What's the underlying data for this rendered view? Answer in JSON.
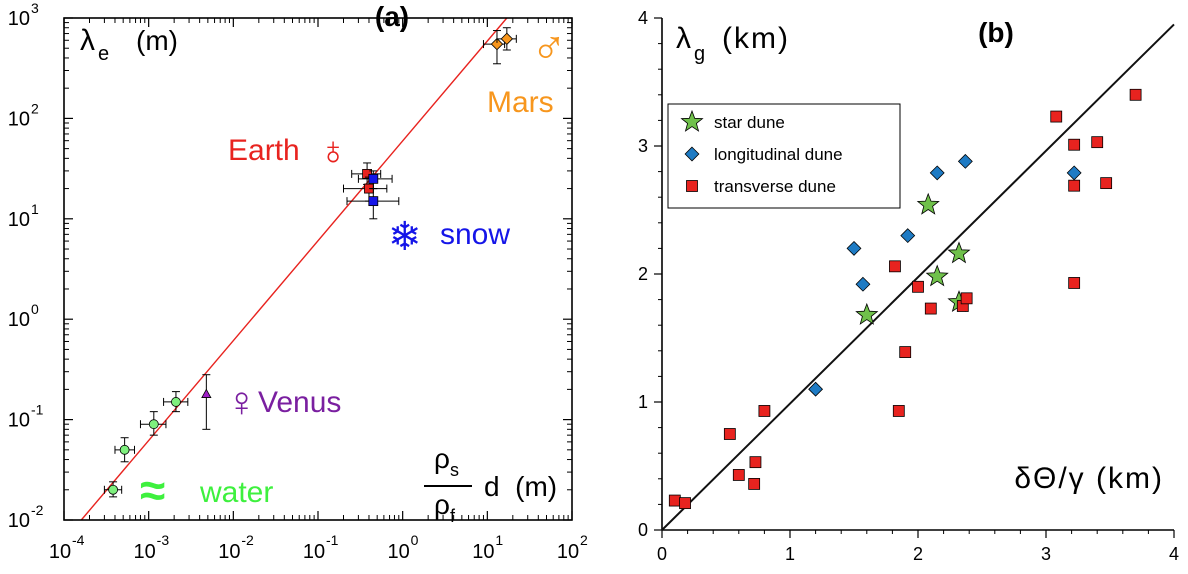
{
  "chart_data": [
    {
      "type": "scatter",
      "title": "(a)",
      "xlabel_num": "ρ",
      "xlabel_num_sub": "s",
      "xlabel_den": "ρ",
      "xlabel_den_sub": "f",
      "xlabel_tail": "d  (m)",
      "ylabel": "λ",
      "ylabel_sub": "e",
      "ylabel_unit": "(m)",
      "xscale": "log",
      "yscale": "log",
      "xlim": [
        0.0001,
        100
      ],
      "ylim": [
        0.01,
        1000
      ],
      "x_ticks": [
        {
          "base": "10",
          "exp": "-4",
          "value": 0.0001
        },
        {
          "base": "10",
          "exp": "-3",
          "value": 0.001
        },
        {
          "base": "10",
          "exp": "-2",
          "value": 0.01
        },
        {
          "base": "10",
          "exp": "-1",
          "value": 0.1
        },
        {
          "base": "10",
          "exp": "0",
          "value": 1
        },
        {
          "base": "10",
          "exp": "1",
          "value": 10
        },
        {
          "base": "10",
          "exp": "2",
          "value": 100
        }
      ],
      "y_ticks": [
        {
          "base": "10",
          "exp": "-2",
          "value": 0.01
        },
        {
          "base": "10",
          "exp": "-1",
          "value": 0.1
        },
        {
          "base": "10",
          "exp": "0",
          "value": 1
        },
        {
          "base": "10",
          "exp": "1",
          "value": 10
        },
        {
          "base": "10",
          "exp": "2",
          "value": 100
        },
        {
          "base": "10",
          "exp": "3",
          "value": 1000
        }
      ],
      "fit_line": {
        "color": "#e8231f",
        "points": [
          [
            0.00016,
            0.01
          ],
          [
            17,
            1000
          ]
        ]
      },
      "labels": {
        "mars": {
          "text": "Mars",
          "color": "#f7961d",
          "symbol": "♂"
        },
        "earth": {
          "text": "Earth",
          "color": "#e8231f",
          "symbol": "♁"
        },
        "snow": {
          "text": "snow",
          "color": "#1515e8",
          "symbol": "❄"
        },
        "venus": {
          "text": "Venus",
          "color": "#7a1fa0",
          "symbol": "♀"
        },
        "water": {
          "text": "water",
          "color": "#3ef03e",
          "symbol": "≈"
        }
      },
      "series": [
        {
          "group": "water",
          "marker": "circle",
          "color": "#7ef07e",
          "points": [
            {
              "x": 0.00038,
              "y": 0.02,
              "xerr": [
                0.0003,
                0.00048
              ],
              "yerr": [
                0.017,
                0.024
              ]
            },
            {
              "x": 0.00052,
              "y": 0.05,
              "xerr": [
                0.0004,
                0.00068
              ],
              "yerr": [
                0.038,
                0.066
              ]
            },
            {
              "x": 0.00115,
              "y": 0.09,
              "xerr": [
                0.0008,
                0.0016
              ],
              "yerr": [
                0.07,
                0.12
              ]
            },
            {
              "x": 0.0021,
              "y": 0.15,
              "xerr": [
                0.0015,
                0.0029
              ],
              "yerr": [
                0.12,
                0.19
              ]
            }
          ]
        },
        {
          "group": "venus",
          "marker": "triangle",
          "color": "#a020c8",
          "points": [
            {
              "x": 0.0048,
              "y": 0.18,
              "xerr": null,
              "yerr": [
                0.08,
                0.28
              ]
            }
          ]
        },
        {
          "group": "earth",
          "marker": "square",
          "color": "#e8231f",
          "points": [
            {
              "x": 0.38,
              "y": 28,
              "xerr": [
                0.25,
                0.55
              ],
              "yerr": [
                22,
                36
              ]
            },
            {
              "x": 0.4,
              "y": 20,
              "xerr": [
                0.2,
                0.65
              ],
              "yerr": [
                15,
                26
              ]
            }
          ]
        },
        {
          "group": "snow",
          "marker": "square",
          "color": "#1515e8",
          "points": [
            {
              "x": 0.45,
              "y": 25,
              "xerr": [
                0.3,
                0.75
              ],
              "yerr": [
                20,
                30
              ]
            },
            {
              "x": 0.45,
              "y": 15,
              "xerr": [
                0.22,
                0.9
              ],
              "yerr": [
                10,
                20
              ]
            }
          ]
        },
        {
          "group": "mars",
          "marker": "diamond",
          "color": "#f7961d",
          "points": [
            {
              "x": 13,
              "y": 550,
              "xerr": [
                9,
                16
              ],
              "yerr": [
                350,
                750
              ]
            },
            {
              "x": 17,
              "y": 620,
              "xerr": [
                13,
                22
              ],
              "yerr": [
                480,
                800
              ]
            }
          ]
        }
      ]
    },
    {
      "type": "scatter",
      "title": "(b)",
      "ylabel": "λ",
      "ylabel_sub": "g",
      "ylabel_unit": "(km)",
      "xlabel": "δΘ/γ (km)",
      "xlim": [
        0,
        4
      ],
      "ylim": [
        0,
        4
      ],
      "x_ticks": [
        "0",
        "1",
        "2",
        "3",
        "4"
      ],
      "y_ticks": [
        "0",
        "1",
        "2",
        "3",
        "4"
      ],
      "fit_line": {
        "color": "#111111",
        "points": [
          [
            0,
            0
          ],
          [
            4,
            3.95
          ]
        ]
      },
      "legend": {
        "position": "top-left",
        "items": [
          {
            "label": "star dune",
            "marker": "star",
            "color": "#6fc04a"
          },
          {
            "label": "longitudinal dune",
            "marker": "diamond",
            "color": "#1e7bc4"
          },
          {
            "label": "transverse dune",
            "marker": "square",
            "color": "#e8231f"
          }
        ]
      },
      "series": [
        {
          "name": "star dune",
          "marker": "star",
          "color": "#6fc04a",
          "points": [
            [
              1.6,
              1.68
            ],
            [
              2.08,
              2.54
            ],
            [
              2.15,
              1.98
            ],
            [
              2.32,
              2.16
            ],
            [
              2.32,
              1.78
            ]
          ]
        },
        {
          "name": "longitudinal dune",
          "marker": "diamond",
          "color": "#1e7bc4",
          "points": [
            [
              1.2,
              1.1
            ],
            [
              1.5,
              2.2
            ],
            [
              1.57,
              1.92
            ],
            [
              1.92,
              2.3
            ],
            [
              2.15,
              2.79
            ],
            [
              2.37,
              2.88
            ],
            [
              3.22,
              2.79
            ]
          ]
        },
        {
          "name": "transverse dune",
          "marker": "square",
          "color": "#e8231f",
          "points": [
            [
              0.1,
              0.23
            ],
            [
              0.18,
              0.21
            ],
            [
              0.53,
              0.75
            ],
            [
              0.6,
              0.43
            ],
            [
              0.72,
              0.36
            ],
            [
              0.73,
              0.53
            ],
            [
              0.8,
              0.93
            ],
            [
              1.82,
              2.06
            ],
            [
              1.85,
              0.93
            ],
            [
              1.9,
              1.39
            ],
            [
              2.0,
              1.9
            ],
            [
              2.1,
              1.73
            ],
            [
              2.35,
              1.75
            ],
            [
              2.38,
              1.81
            ],
            [
              3.08,
              3.23
            ],
            [
              3.22,
              3.01
            ],
            [
              3.22,
              2.69
            ],
            [
              3.22,
              1.93
            ],
            [
              3.4,
              3.03
            ],
            [
              3.47,
              2.71
            ],
            [
              3.7,
              3.4
            ]
          ]
        }
      ]
    }
  ]
}
